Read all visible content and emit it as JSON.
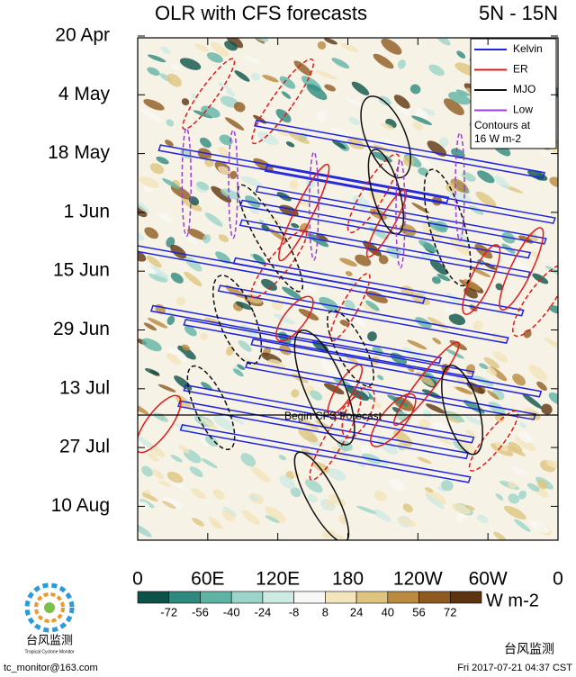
{
  "chart_data": {
    "type": "hovmoller",
    "title": "OLR with CFS forecasts",
    "subtitle": "5N - 15N",
    "y_categories": [
      "20 Apr",
      "4 May",
      "18 May",
      "1 Jun",
      "15 Jun",
      "29 Jun",
      "13 Jul",
      "27 Jul",
      "10 Aug"
    ],
    "xlim": [
      0,
      360
    ],
    "xticks": [
      0,
      {
        "value": 60,
        "label": "60E"
      },
      {
        "value": 120,
        "label": "120E"
      },
      180,
      {
        "value": 240,
        "label": "120W"
      },
      {
        "value": 300,
        "label": "60W"
      },
      {
        "value": 360,
        "label": "0"
      }
    ],
    "legend": [
      {
        "name": "Kelvin",
        "color": "#1f24d8"
      },
      {
        "name": "ER",
        "color": "#e01b1b"
      },
      {
        "name": "MJO",
        "color": "#111111"
      },
      {
        "name": "Low",
        "color": "#9b3fd6"
      }
    ],
    "legend_note": [
      "Contours at",
      "16 W m-2"
    ],
    "forecast_label": "Begin CFS Forecast",
    "colorbar": {
      "ticks": [
        -72,
        -56,
        -40,
        -24,
        -8,
        8,
        24,
        40,
        56,
        72
      ],
      "colors": [
        "#0d5249",
        "#2e8a7e",
        "#5fb3a5",
        "#9bd4c8",
        "#cdeae3",
        "#f7f7f5",
        "#f3e4bb",
        "#ddc47f",
        "#b98a3f",
        "#8d5a1f",
        "#5c3510"
      ],
      "unit": "W m-2"
    },
    "footer": {
      "logo_text": "台风监测",
      "logo_subtext": "Tropical Cyclone Monitor",
      "email": "tc_monitor@163.com",
      "timestamp": "Fri 2017-07-21 04:37 CST",
      "watermark": "台风监测"
    }
  }
}
